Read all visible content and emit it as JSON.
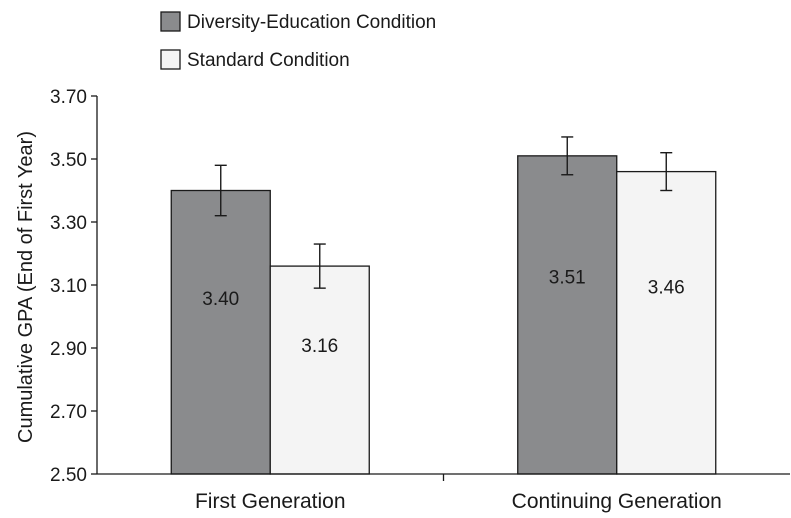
{
  "chart_data": {
    "type": "bar",
    "categories": [
      "First Generation",
      "Continuing Generation"
    ],
    "series": [
      {
        "name": "Diversity-Education Condition",
        "values": [
          3.4,
          3.51
        ],
        "error": [
          [
            3.32,
            3.48
          ],
          [
            3.45,
            3.57
          ]
        ],
        "color": "#8a8b8d"
      },
      {
        "name": "Standard Condition",
        "values": [
          3.16,
          3.46
        ],
        "error": [
          [
            3.09,
            3.23
          ],
          [
            3.4,
            3.52
          ]
        ],
        "color": "#f4f4f4"
      }
    ],
    "value_labels": [
      [
        "3.40",
        "3.51"
      ],
      [
        "3.16",
        "3.46"
      ]
    ],
    "ylabel": "Cumulative GPA (End of First Year)",
    "xlabel": "",
    "ylim": [
      2.5,
      3.7
    ],
    "yticks": [
      "2.50",
      "2.70",
      "2.90",
      "3.10",
      "3.30",
      "3.50",
      "3.70"
    ],
    "grid": false,
    "legend_position": "top-left"
  }
}
